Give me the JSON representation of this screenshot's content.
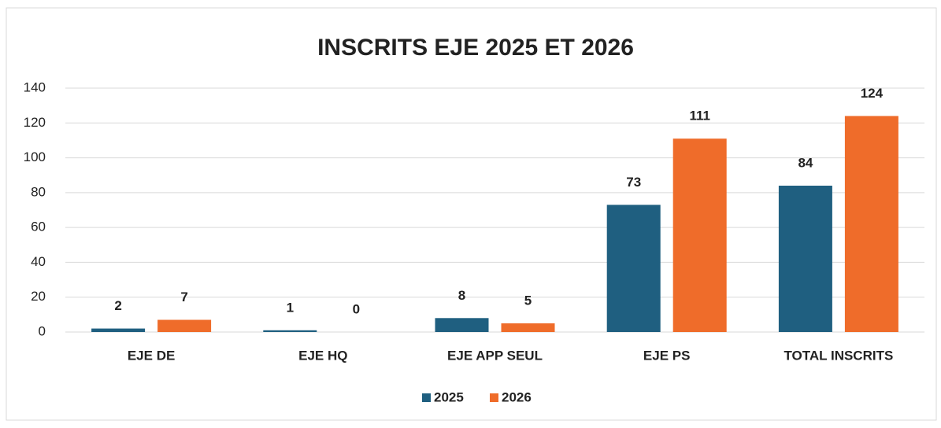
{
  "chart_data": {
    "type": "bar",
    "title": "INSCRITS EJE 2025 ET 2026",
    "categories": [
      "EJE DE",
      "EJE HQ",
      "EJE APP SEUL",
      "EJE PS",
      "TOTAL INSCRITS"
    ],
    "series": [
      {
        "name": "2025",
        "color": "#1f5f80",
        "values": [
          2,
          1,
          8,
          73,
          84
        ]
      },
      {
        "name": "2026",
        "color": "#ef6c2a",
        "values": [
          7,
          0,
          5,
          111,
          124
        ]
      }
    ],
    "ylim": [
      0,
      140
    ],
    "yticks": [
      0,
      20,
      40,
      60,
      80,
      100,
      120,
      140
    ],
    "grid": true,
    "legend": "bottom"
  }
}
